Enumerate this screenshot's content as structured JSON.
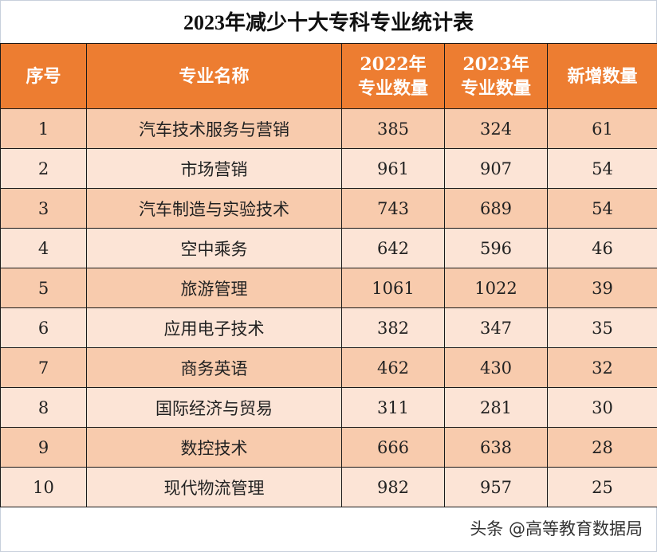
{
  "title": "2023年减少十大专科专业统计表",
  "table": {
    "headers": [
      "序号",
      "专业名称",
      "2022年专业数量",
      "2023年专业数量",
      "新增数量"
    ],
    "rows": [
      [
        "1",
        "汽车技术服务与营销",
        "385",
        "324",
        "61"
      ],
      [
        "2",
        "市场营销",
        "961",
        "907",
        "54"
      ],
      [
        "3",
        "汽车制造与实验技术",
        "743",
        "689",
        "54"
      ],
      [
        "4",
        "空中乘务",
        "642",
        "596",
        "46"
      ],
      [
        "5",
        "旅游管理",
        "1061",
        "1022",
        "39"
      ],
      [
        "6",
        "应用电子技术",
        "382",
        "347",
        "35"
      ],
      [
        "7",
        "商务英语",
        "462",
        "430",
        "32"
      ],
      [
        "8",
        "国际经济与贸易",
        "311",
        "281",
        "30"
      ],
      [
        "9",
        "数控技术",
        "666",
        "638",
        "28"
      ],
      [
        "10",
        "现代物流管理",
        "982",
        "957",
        "25"
      ]
    ]
  },
  "watermark": "头条 @高等教育数据局",
  "colors": {
    "header": "#ed7d31",
    "row_odd": "#f8cbad",
    "row_even": "#fce4d6"
  }
}
